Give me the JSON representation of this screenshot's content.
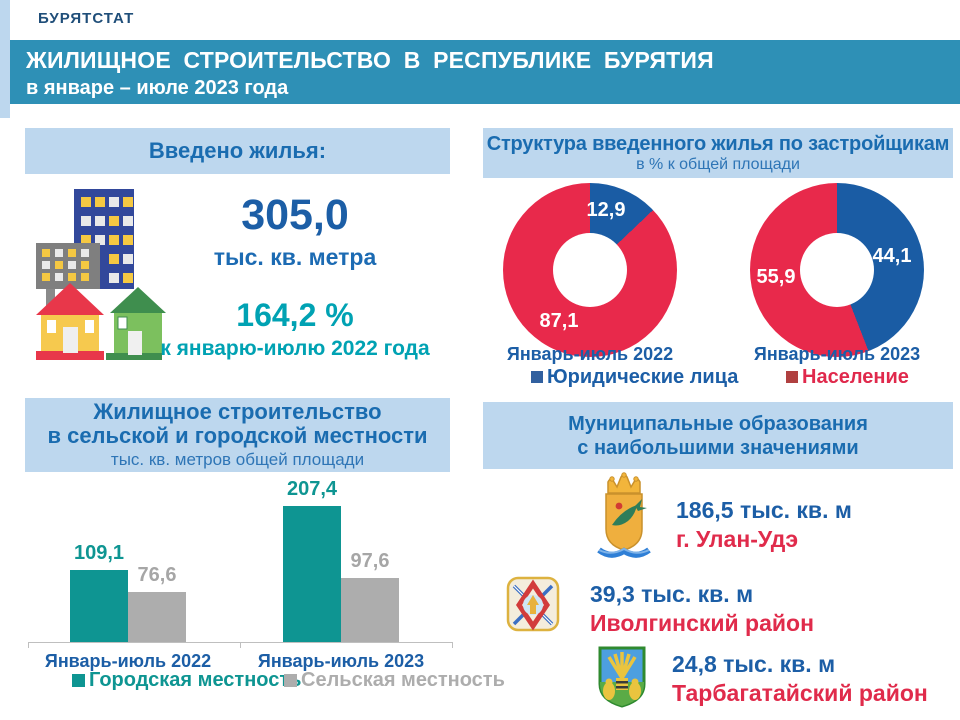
{
  "page": {
    "logo": "БУРЯТСТАТ",
    "title_line1": "ЖИЛИЩНОЕ СТРОИТЕЛЬСТВО В РЕСПУБЛИКЕ БУРЯТИЯ",
    "title_line2": "в январе – июле 2023 года"
  },
  "intro": {
    "header": "Введено жилья:",
    "value": "305,0",
    "unit": "тыс. кв. метра",
    "percent": "164,2 %",
    "percent_caption": "к январю-июлю 2022 года"
  },
  "structure_panel": {
    "header": "Структура введенного жилья по застройщикам",
    "subheader": "в % к общей площади",
    "legend": [
      {
        "label": "Юридические лица",
        "color": "#31609F",
        "text_color": "#1C5EA6"
      },
      {
        "label": "Население",
        "color": "#B04040",
        "text_color": "#E0294C"
      }
    ]
  },
  "rural_panel": {
    "header_line1": "Жилищное строительство",
    "header_line2": "в сельской и городской местности",
    "subheader": "тыс. кв. метров общей площади"
  },
  "municipal_panel": {
    "header_line1": "Муниципальные образования",
    "header_line2": "с наибольшими значениями",
    "items": [
      {
        "value": "186,5 тыс. кв. м",
        "name": "г. Улан-Удэ",
        "arms": "ulan-ude-coat-of-arms"
      },
      {
        "value": "39,3 тыс. кв. м",
        "name": "Иволгинский район",
        "arms": "ivolginsky-coat-of-arms"
      },
      {
        "value": "24,8 тыс. кв. м",
        "name": "Тарбагатайский район",
        "arms": "tarbagataysky-coat-of-arms"
      }
    ]
  },
  "chart_data": [
    {
      "type": "pie",
      "variant": "donut",
      "title": "Структура введенного жилья по застройщикам",
      "subtitle": "в % к общей площади",
      "legend_position": "bottom",
      "colors": {
        "Юридические лица": "#1A5CA4",
        "Население": "#E8294B"
      },
      "charts": [
        {
          "label": "Январь-июль 2022",
          "slices": [
            {
              "name": "Юридические лица",
              "value": 12.9
            },
            {
              "name": "Население",
              "value": 87.1
            }
          ]
        },
        {
          "label": "Январь-июль 2023",
          "slices": [
            {
              "name": "Юридические лица",
              "value": 44.1
            },
            {
              "name": "Население",
              "value": 55.9
            }
          ]
        }
      ]
    },
    {
      "type": "bar",
      "title": "Жилищное строительство в сельской и городской местности",
      "subtitle": "тыс. кв. метров общей площади",
      "categories": [
        "Январь-июль 2022",
        "Январь-июль 2023"
      ],
      "series": [
        {
          "name": "Городская местность",
          "color": "#0E9592",
          "values": [
            109.1,
            207.4
          ]
        },
        {
          "name": "Сельская местность",
          "color": "#ADADAD",
          "values": [
            76.6,
            97.6
          ]
        }
      ],
      "ylim": [
        0,
        220
      ],
      "grid": false,
      "value_labels": true,
      "legend_position": "bottom"
    }
  ]
}
